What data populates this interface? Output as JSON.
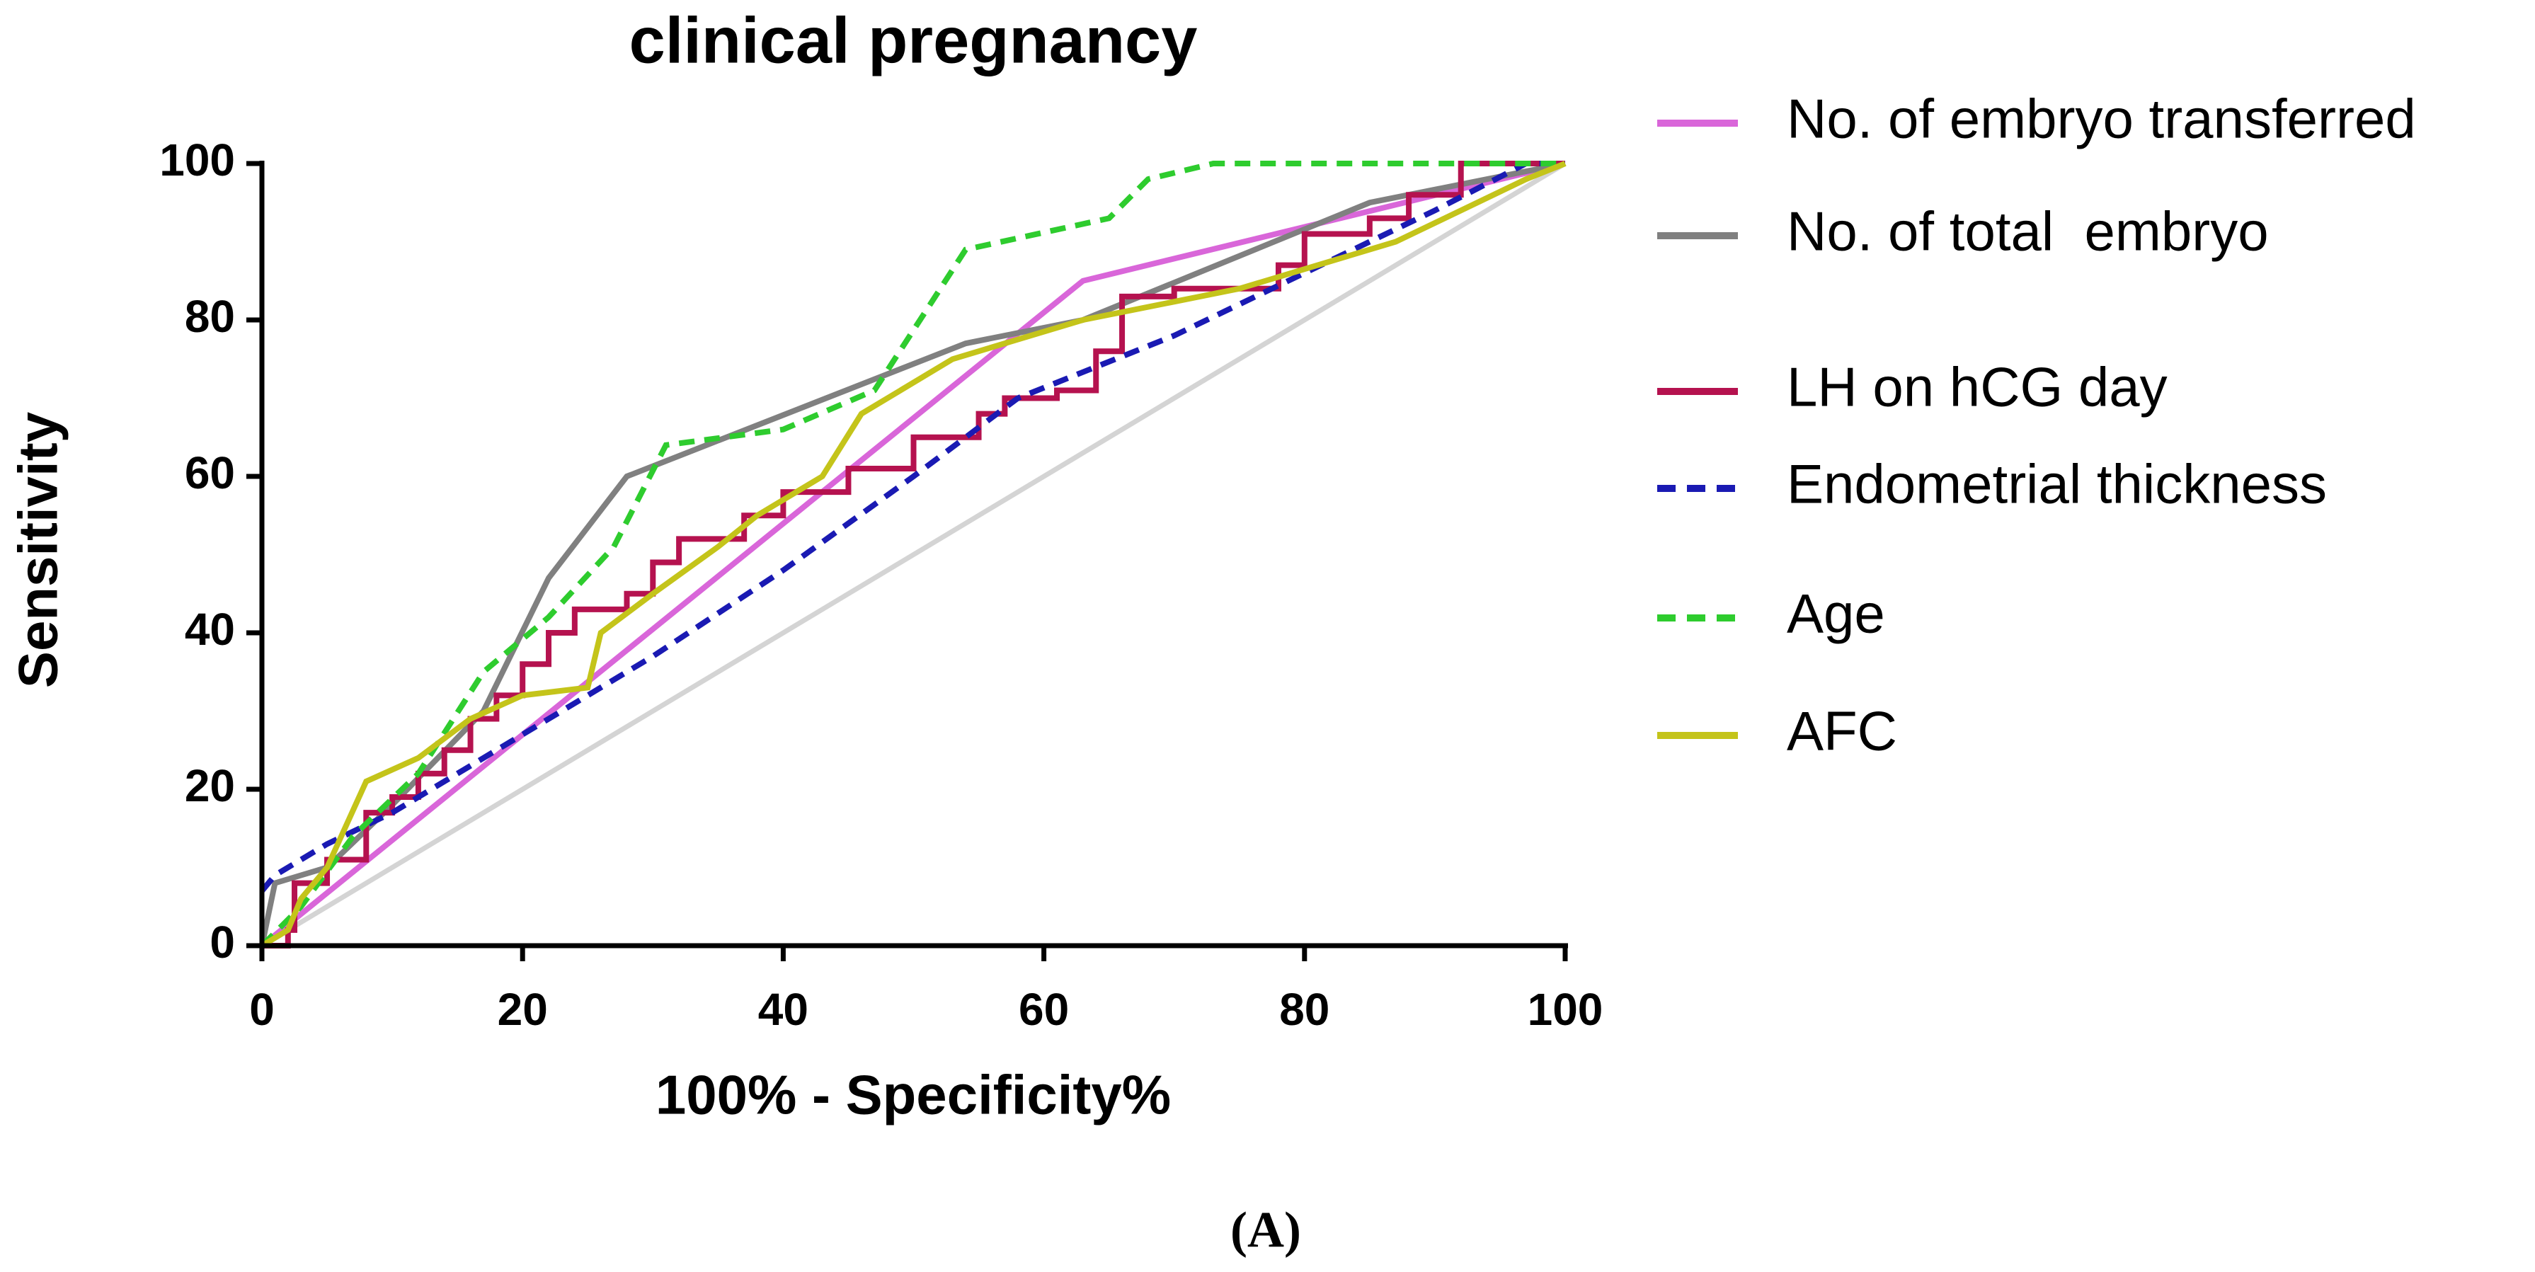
{
  "chart_data": {
    "type": "line",
    "title": "clinical pregnancy",
    "x_label": "100% - Specificity%",
    "y_label": "Sensitivity",
    "caption": "(A)",
    "xlim": [
      0,
      100
    ],
    "ylim": [
      0,
      100
    ],
    "xticks": [
      0,
      20,
      40,
      60,
      80,
      100
    ],
    "yticks": [
      0,
      20,
      40,
      60,
      80,
      100
    ],
    "legend": "right",
    "series": [
      {
        "name": "No. of embryo transferred",
        "color": "#d966d9",
        "line_style": "solid",
        "x": [
          0,
          63,
          100
        ],
        "values": [
          0,
          85,
          100
        ]
      },
      {
        "name": "No. of total  embryo",
        "color": "#808080",
        "line_style": "solid",
        "x": [
          0,
          1,
          5,
          10,
          17,
          22,
          28,
          54,
          63,
          85,
          100
        ],
        "values": [
          0,
          8,
          10,
          18,
          30,
          47,
          60,
          77,
          80,
          95,
          100
        ]
      },
      {
        "name": "LH on hCG day",
        "color": "#b5124f",
        "line_style": "solid",
        "x": [
          0,
          2,
          2,
          2.5,
          2.5,
          5,
          5,
          8,
          8,
          10,
          10,
          12,
          12,
          14,
          14,
          16,
          16,
          18,
          18,
          20,
          20,
          22,
          22,
          24,
          24,
          28,
          28,
          30,
          30,
          32,
          32,
          37,
          37,
          40,
          40,
          45,
          45,
          50,
          50,
          55,
          55,
          57,
          57,
          61,
          61,
          64,
          64,
          66,
          66,
          70,
          70,
          78,
          78,
          80,
          80,
          85,
          85,
          88,
          88,
          92,
          92,
          100
        ],
        "values": [
          0,
          0,
          2,
          2,
          8,
          8,
          11,
          11,
          17,
          17,
          19,
          19,
          22,
          22,
          25,
          25,
          29,
          29,
          32,
          32,
          36,
          36,
          40,
          40,
          43,
          43,
          45,
          45,
          49,
          49,
          52,
          52,
          55,
          55,
          58,
          58,
          61,
          61,
          65,
          65,
          68,
          68,
          70,
          70,
          71,
          71,
          76,
          76,
          83,
          83,
          84,
          84,
          87,
          87,
          91,
          91,
          93,
          93,
          96,
          96,
          100,
          100
        ]
      },
      {
        "name": "Endometrial thickness",
        "color": "#1a1ab3",
        "line_style": "dashed",
        "x": [
          0,
          1,
          5,
          10,
          20,
          30,
          40,
          50,
          58,
          70,
          80,
          90,
          97,
          100
        ],
        "values": [
          7,
          9,
          13,
          17,
          27,
          37,
          48,
          60,
          70,
          78,
          86,
          94,
          100,
          100
        ]
      },
      {
        "name": "Age",
        "color": "#2ecc2e",
        "line_style": "dashed",
        "x": [
          0,
          3,
          7,
          12,
          17,
          22,
          27,
          31,
          40,
          47,
          54,
          65,
          68,
          73,
          100
        ],
        "values": [
          0,
          5,
          14,
          22,
          35,
          42,
          51,
          64,
          66,
          71,
          89,
          93,
          98,
          100,
          100
        ]
      },
      {
        "name": "AFC",
        "color": "#c4c41a",
        "line_style": "solid",
        "x": [
          0,
          2,
          3,
          5,
          8,
          12,
          16,
          20,
          25,
          26,
          30,
          35,
          38,
          43,
          46,
          53,
          63,
          75,
          87,
          97,
          100
        ],
        "values": [
          0,
          2,
          6,
          10,
          21,
          24,
          29,
          32,
          33,
          40,
          45,
          51,
          55,
          60,
          68,
          75,
          80,
          84,
          90,
          98,
          100
        ]
      }
    ]
  }
}
